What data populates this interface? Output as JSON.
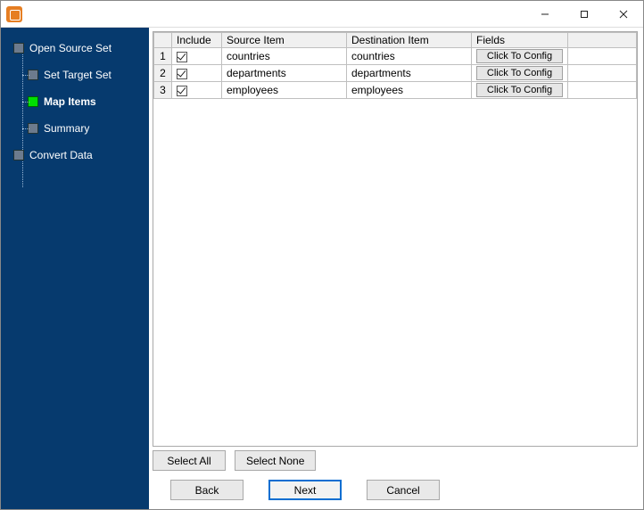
{
  "window": {
    "title": ""
  },
  "colors": {
    "sidebar_bg": "#063a6e",
    "active_step_box": "#00e000",
    "inactive_step_box": "#6d7b8d",
    "header_bg": "#f0f0f0",
    "border": "#bfbfbf",
    "button_bg": "#e9e9e9",
    "focus_border": "#0a6ed1"
  },
  "sidebar": {
    "steps": [
      {
        "label": "Open Source Set",
        "level": "root",
        "active": false
      },
      {
        "label": "Set Target Set",
        "level": "child",
        "active": false
      },
      {
        "label": "Map Items",
        "level": "child",
        "active": true
      },
      {
        "label": "Summary",
        "level": "child",
        "active": false
      },
      {
        "label": "Convert Data",
        "level": "root",
        "active": false
      }
    ]
  },
  "grid": {
    "columns": {
      "include": "Include",
      "source": "Source Item",
      "dest": "Destination Item",
      "fields": "Fields"
    },
    "config_button_label": "Click To Config",
    "rows": [
      {
        "n": "1",
        "include": true,
        "source": "countries",
        "dest": "countries"
      },
      {
        "n": "2",
        "include": true,
        "source": "departments",
        "dest": "departments"
      },
      {
        "n": "3",
        "include": true,
        "source": "employees",
        "dest": "employees"
      }
    ]
  },
  "buttons": {
    "select_all": "Select All",
    "select_none": "Select None",
    "back": "Back",
    "next": "Next",
    "cancel": "Cancel"
  }
}
